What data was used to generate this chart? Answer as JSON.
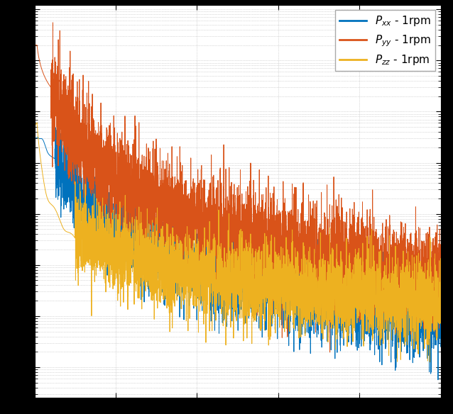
{
  "line_colors": [
    "#0072bd",
    "#d95319",
    "#edb120"
  ],
  "legend_labels": [
    "$P_{xx}$ - 1rpm",
    "$P_{yy}$ - 1rpm",
    "$P_{zz}$ - 1rpm"
  ],
  "xlim": [
    0,
    500
  ],
  "background_color": "#ffffff",
  "outer_color": "#000000",
  "grid_color": "#b0b0b0",
  "seed": 42,
  "n_points": 5000
}
